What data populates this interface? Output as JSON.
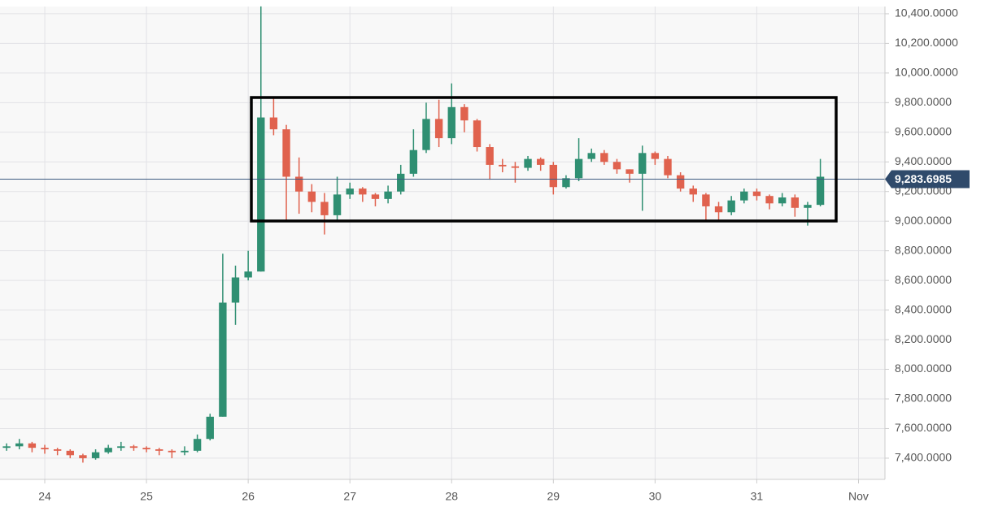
{
  "chart_data": {
    "type": "candlestick",
    "x": [
      23.625,
      23.75,
      23.875,
      24,
      24.125,
      24.25,
      24.375,
      24.5,
      24.625,
      24.75,
      24.875,
      25,
      25.125,
      25.25,
      25.375,
      25.5,
      25.625,
      25.75,
      25.875,
      26,
      26.125,
      26.25,
      26.375,
      26.5,
      26.625,
      26.75,
      26.875,
      27,
      27.125,
      27.25,
      27.375,
      27.5,
      27.625,
      27.75,
      27.875,
      28,
      28.125,
      28.25,
      28.375,
      28.5,
      28.625,
      28.75,
      28.875,
      29,
      29.125,
      29.25,
      29.375,
      29.5,
      29.625,
      29.75,
      29.875,
      30,
      30.125,
      30.25,
      30.375,
      30.5,
      30.625,
      30.75,
      30.875,
      31,
      31.125,
      31.25,
      31.375,
      31.5,
      31.625
    ],
    "open": [
      7470,
      7480,
      7500,
      7470,
      7460,
      7450,
      7420,
      7400,
      7440,
      7470,
      7480,
      7470,
      7460,
      7450,
      7440,
      7450,
      7530,
      7680,
      8450,
      8620,
      8660,
      9700,
      9620,
      9300,
      9200,
      9130,
      9040,
      9180,
      9220,
      9180,
      9150,
      9200,
      9320,
      9480,
      9690,
      9560,
      9770,
      9680,
      9500,
      9380,
      9370,
      9360,
      9420,
      9380,
      9230,
      9290,
      9420,
      9460,
      9400,
      9350,
      9320,
      9460,
      9420,
      9310,
      9220,
      9180,
      9100,
      9060,
      9140,
      9200,
      9170,
      9120,
      9160,
      9090,
      9110
    ],
    "high": [
      7500,
      7530,
      7510,
      7490,
      7470,
      7460,
      7430,
      7460,
      7490,
      7510,
      7490,
      7480,
      7470,
      7460,
      7480,
      7560,
      7700,
      8780,
      8700,
      8800,
      10450,
      9840,
      9650,
      9430,
      9250,
      9190,
      9300,
      9260,
      9230,
      9190,
      9240,
      9380,
      9620,
      9800,
      9820,
      9930,
      9790,
      9690,
      9520,
      9420,
      9400,
      9440,
      9430,
      9400,
      9310,
      9560,
      9490,
      9480,
      9420,
      9350,
      9510,
      9470,
      9440,
      9330,
      9240,
      9190,
      9130,
      9170,
      9220,
      9220,
      9180,
      9190,
      9180,
      9130,
      9420
    ],
    "low": [
      7450,
      7460,
      7440,
      7430,
      7420,
      7400,
      7370,
      7390,
      7430,
      7450,
      7450,
      7440,
      7420,
      7400,
      7420,
      7440,
      7520,
      7680,
      8300,
      8600,
      8660,
      9580,
      9000,
      9050,
      9060,
      8910,
      9000,
      9150,
      9130,
      9100,
      9120,
      9180,
      9300,
      9460,
      9500,
      9520,
      9600,
      9470,
      9280,
      9330,
      9260,
      9340,
      9340,
      9180,
      9220,
      9270,
      9400,
      9380,
      9320,
      9260,
      9070,
      9380,
      9290,
      9200,
      9130,
      9000,
      9000,
      9040,
      9120,
      9140,
      9080,
      9100,
      9030,
      8970,
      9100
    ],
    "close": [
      7480,
      7500,
      7470,
      7460,
      7450,
      7420,
      7400,
      7440,
      7470,
      7480,
      7470,
      7460,
      7450,
      7440,
      7450,
      7530,
      7680,
      8450,
      8620,
      8660,
      9700,
      9620,
      9300,
      9200,
      9130,
      9040,
      9180,
      9220,
      9180,
      9150,
      9200,
      9320,
      9480,
      9690,
      9560,
      9770,
      9680,
      9500,
      9380,
      9370,
      9360,
      9420,
      9380,
      9230,
      9290,
      9420,
      9460,
      9400,
      9350,
      9320,
      9460,
      9420,
      9310,
      9220,
      9180,
      9100,
      9060,
      9140,
      9200,
      9170,
      9120,
      9160,
      9090,
      9110,
      9300
    ],
    "up_color": "#2f8f72",
    "down_color": "#e0624e",
    "xlim": [
      23.56,
      32.26
    ],
    "xticks": [
      24,
      25,
      26,
      27,
      28,
      29,
      30,
      31,
      {
        "value": 32,
        "label": "Nov"
      }
    ],
    "ylim": [
      7257,
      10449
    ],
    "yticks": [
      {
        "value": 7400,
        "label": "7,400.0000"
      },
      {
        "value": 7600,
        "label": "7,600.0000"
      },
      {
        "value": 7800,
        "label": "7,800.0000"
      },
      {
        "value": 8000,
        "label": "8,000.0000"
      },
      {
        "value": 8200,
        "label": "8,200.0000"
      },
      {
        "value": 8400,
        "label": "8,400.0000"
      },
      {
        "value": 8600,
        "label": "8,600.0000"
      },
      {
        "value": 8800,
        "label": "8,800.0000"
      },
      {
        "value": 9000,
        "label": "9,000.0000"
      },
      {
        "value": 9200,
        "label": "9,200.0000"
      },
      {
        "value": 9400,
        "label": "9,400.0000"
      },
      {
        "value": 9600,
        "label": "9,600.0000"
      },
      {
        "value": 9800,
        "label": "9,800.0000"
      },
      {
        "value": 10000,
        "label": "10,000.0000"
      },
      {
        "value": 10200,
        "label": "10,200.0000"
      },
      {
        "value": 10400,
        "label": "10,400.0000"
      }
    ],
    "current_price": {
      "value": 9283.6985,
      "label": "9,283.6985"
    },
    "grid": true
  }
}
